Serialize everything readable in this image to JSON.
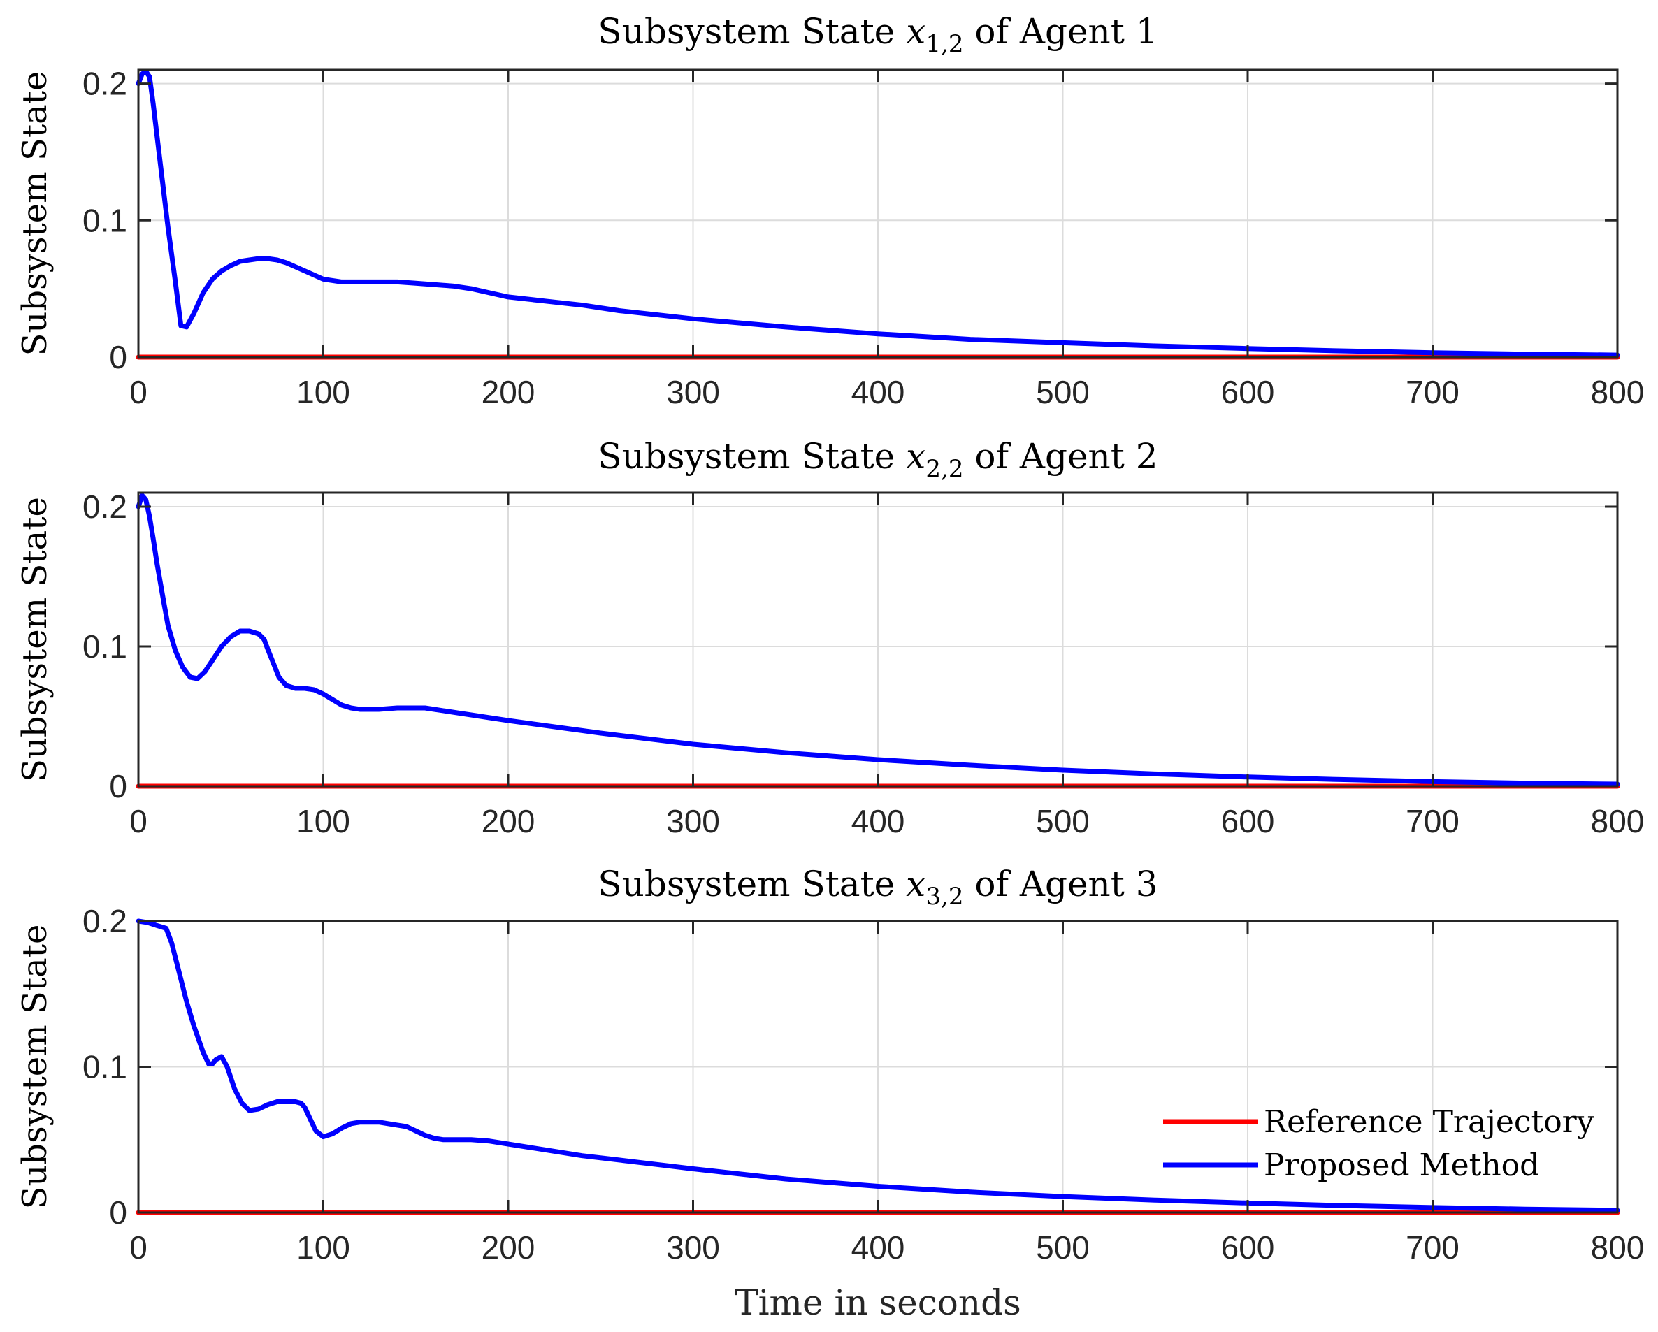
{
  "chart_data": [
    {
      "type": "line",
      "title": "Subsystem State x_{1,2} of Agent 1",
      "title_prefix": "Subsystem State ",
      "title_var": "x",
      "title_sub": "1,2",
      "title_suffix": " of Agent 1",
      "xlabel": "",
      "ylabel": "Subsystem State",
      "xlim": [
        0,
        800
      ],
      "ylim": [
        0,
        0.21
      ],
      "xticks": [
        0,
        100,
        200,
        300,
        400,
        500,
        600,
        700,
        800
      ],
      "xtick_labels": [
        "0",
        "100",
        "200",
        "300",
        "400",
        "500",
        "600",
        "700",
        "800"
      ],
      "yticks": [
        0,
        0.1,
        0.2
      ],
      "ytick_labels": [
        "0",
        "0.1",
        "0.2"
      ],
      "grid": true,
      "series": [
        {
          "name": "Reference Trajectory",
          "color": "#ff0000",
          "x": [
            0,
            800
          ],
          "y": [
            0,
            0
          ]
        },
        {
          "name": "Proposed Method",
          "color": "#0000ff",
          "x": [
            0,
            2,
            4,
            6,
            8,
            12,
            16,
            20,
            23,
            26,
            30,
            35,
            40,
            45,
            50,
            55,
            60,
            65,
            70,
            75,
            80,
            85,
            90,
            95,
            100,
            110,
            120,
            130,
            140,
            150,
            160,
            170,
            180,
            190,
            200,
            220,
            240,
            260,
            280,
            300,
            350,
            400,
            450,
            500,
            550,
            600,
            650,
            700,
            750,
            800
          ],
          "y": [
            0.2,
            0.207,
            0.209,
            0.205,
            0.185,
            0.14,
            0.095,
            0.055,
            0.023,
            0.022,
            0.032,
            0.047,
            0.057,
            0.063,
            0.067,
            0.07,
            0.071,
            0.072,
            0.072,
            0.071,
            0.069,
            0.066,
            0.063,
            0.06,
            0.057,
            0.055,
            0.055,
            0.055,
            0.055,
            0.054,
            0.053,
            0.052,
            0.05,
            0.047,
            0.044,
            0.041,
            0.038,
            0.034,
            0.031,
            0.028,
            0.022,
            0.017,
            0.013,
            0.0105,
            0.0082,
            0.0063,
            0.0046,
            0.0032,
            0.0022,
            0.0015
          ]
        }
      ]
    },
    {
      "type": "line",
      "title": "Subsystem State x_{2,2} of Agent 2",
      "title_prefix": "Subsystem State ",
      "title_var": "x",
      "title_sub": "2,2",
      "title_suffix": " of Agent 2",
      "xlabel": "",
      "ylabel": "Subsystem State",
      "xlim": [
        0,
        800
      ],
      "ylim": [
        0,
        0.21
      ],
      "xticks": [
        0,
        100,
        200,
        300,
        400,
        500,
        600,
        700,
        800
      ],
      "xtick_labels": [
        "0",
        "100",
        "200",
        "300",
        "400",
        "500",
        "600",
        "700",
        "800"
      ],
      "yticks": [
        0,
        0.1,
        0.2
      ],
      "ytick_labels": [
        "0",
        "0.1",
        "0.2"
      ],
      "grid": true,
      "series": [
        {
          "name": "Reference Trajectory",
          "color": "#ff0000",
          "x": [
            0,
            800
          ],
          "y": [
            0,
            0
          ]
        },
        {
          "name": "Proposed Method",
          "color": "#0000ff",
          "x": [
            0,
            2,
            4,
            6,
            8,
            10,
            13,
            16,
            20,
            24,
            28,
            32,
            36,
            40,
            45,
            50,
            55,
            60,
            65,
            68,
            70,
            73,
            76,
            80,
            85,
            90,
            95,
            100,
            105,
            110,
            115,
            120,
            130,
            140,
            150,
            155,
            160,
            170,
            180,
            200,
            250,
            300,
            350,
            400,
            450,
            500,
            550,
            600,
            650,
            700,
            750,
            800
          ],
          "y": [
            0.2,
            0.208,
            0.205,
            0.193,
            0.177,
            0.16,
            0.137,
            0.115,
            0.097,
            0.085,
            0.078,
            0.077,
            0.082,
            0.09,
            0.1,
            0.107,
            0.111,
            0.111,
            0.109,
            0.105,
            0.098,
            0.088,
            0.078,
            0.072,
            0.07,
            0.07,
            0.069,
            0.066,
            0.062,
            0.058,
            0.056,
            0.055,
            0.055,
            0.056,
            0.056,
            0.056,
            0.055,
            0.053,
            0.051,
            0.047,
            0.038,
            0.03,
            0.024,
            0.019,
            0.015,
            0.0115,
            0.0088,
            0.0066,
            0.0048,
            0.0033,
            0.0022,
            0.0015
          ]
        }
      ]
    },
    {
      "type": "line",
      "title": "Subsystem State x_{3,2} of Agent 3",
      "title_prefix": "Subsystem State ",
      "title_var": "x",
      "title_sub": "3,2",
      "title_suffix": " of Agent 3",
      "xlabel": "Time in seconds",
      "ylabel": "Subsystem State",
      "xlim": [
        0,
        800
      ],
      "ylim": [
        0,
        0.2
      ],
      "xticks": [
        0,
        100,
        200,
        300,
        400,
        500,
        600,
        700,
        800
      ],
      "xtick_labels": [
        "0",
        "100",
        "200",
        "300",
        "400",
        "500",
        "600",
        "700",
        "800"
      ],
      "yticks": [
        0,
        0.1,
        0.2
      ],
      "ytick_labels": [
        "0",
        "0.1",
        "0.2"
      ],
      "grid": true,
      "legend": {
        "location": "lower-right",
        "entries": [
          "Reference Trajectory",
          "Proposed Method"
        ]
      },
      "series": [
        {
          "name": "Reference Trajectory",
          "color": "#ff0000",
          "x": [
            0,
            800
          ],
          "y": [
            0,
            0
          ]
        },
        {
          "name": "Proposed Method",
          "color": "#0000ff",
          "x": [
            0,
            5,
            10,
            15,
            18,
            22,
            26,
            30,
            35,
            38,
            40,
            42,
            45,
            48,
            52,
            56,
            60,
            65,
            70,
            75,
            80,
            85,
            88,
            90,
            93,
            96,
            100,
            105,
            110,
            115,
            120,
            125,
            130,
            140,
            145,
            150,
            155,
            160,
            165,
            170,
            180,
            190,
            200,
            220,
            240,
            260,
            280,
            300,
            350,
            400,
            450,
            500,
            550,
            600,
            650,
            700,
            750,
            800
          ],
          "y": [
            0.2,
            0.199,
            0.197,
            0.195,
            0.185,
            0.165,
            0.145,
            0.128,
            0.11,
            0.102,
            0.102,
            0.105,
            0.107,
            0.1,
            0.085,
            0.075,
            0.07,
            0.071,
            0.074,
            0.076,
            0.076,
            0.076,
            0.075,
            0.072,
            0.064,
            0.056,
            0.052,
            0.054,
            0.058,
            0.061,
            0.062,
            0.062,
            0.062,
            0.06,
            0.059,
            0.056,
            0.053,
            0.051,
            0.05,
            0.05,
            0.05,
            0.049,
            0.047,
            0.043,
            0.039,
            0.036,
            0.033,
            0.03,
            0.023,
            0.018,
            0.014,
            0.011,
            0.0085,
            0.0065,
            0.0048,
            0.0034,
            0.0023,
            0.0015
          ]
        }
      ]
    }
  ]
}
